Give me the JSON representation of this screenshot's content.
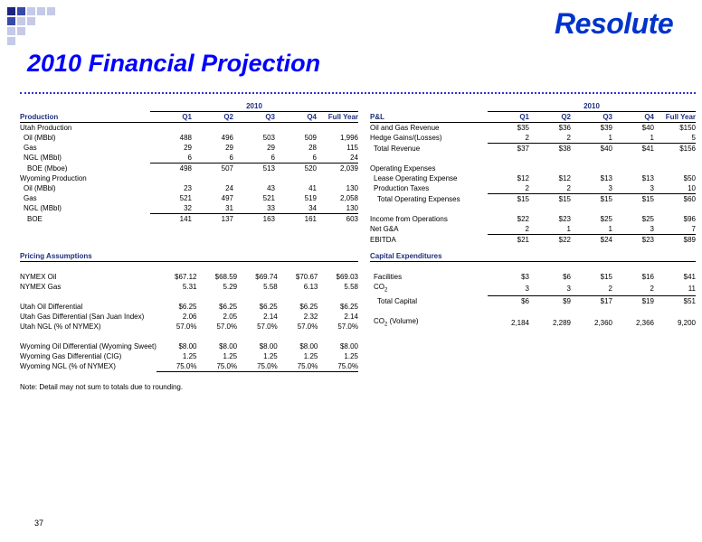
{
  "brand": {
    "logo_text": "Resolute",
    "accent": "#0033cc",
    "title_color": "#0000ff",
    "header_color": "#1f2f7f"
  },
  "page": {
    "title": "2010 Financial Projection",
    "page_number": "37",
    "note": "Note:  Detail may not sum to totals due to rounding."
  },
  "production": {
    "year": "2010",
    "header": [
      "Production",
      "Q1",
      "Q2",
      "Q3",
      "Q4",
      "Full Year"
    ],
    "rows": [
      {
        "label": "Utah Production",
        "indent": 0,
        "values": [
          "",
          "",
          "",
          "",
          ""
        ]
      },
      {
        "label": "Oil (MBbl)",
        "indent": 1,
        "values": [
          "488",
          "496",
          "503",
          "509",
          "1,996"
        ]
      },
      {
        "label": "Gas",
        "indent": 1,
        "values": [
          "29",
          "29",
          "29",
          "28",
          "115"
        ]
      },
      {
        "label": "NGL (MBbl)",
        "indent": 1,
        "values": [
          "6",
          "6",
          "6",
          "6",
          "24"
        ],
        "underline": true
      },
      {
        "label": "BOE (Mboe)",
        "indent": 2,
        "values": [
          "498",
          "507",
          "513",
          "520",
          "2,039"
        ]
      },
      {
        "label": "Wyoming Production",
        "indent": 0,
        "values": [
          "",
          "",
          "",
          "",
          ""
        ]
      },
      {
        "label": "Oil (MBbl)",
        "indent": 1,
        "values": [
          "23",
          "24",
          "43",
          "41",
          "130"
        ]
      },
      {
        "label": "Gas",
        "indent": 1,
        "values": [
          "521",
          "497",
          "521",
          "519",
          "2,058"
        ]
      },
      {
        "label": "NGL (MBbl)",
        "indent": 1,
        "values": [
          "32",
          "31",
          "33",
          "34",
          "130"
        ],
        "underline": true
      },
      {
        "label": "BOE",
        "indent": 2,
        "values": [
          "141",
          "137",
          "163",
          "161",
          "603"
        ]
      }
    ]
  },
  "pnl": {
    "year": "2010",
    "header": [
      "P&L",
      "Q1",
      "Q2",
      "Q3",
      "Q4",
      "Full Year"
    ],
    "rows": [
      {
        "label": "Oil and Gas Revenue",
        "indent": 0,
        "values": [
          "$35",
          "$36",
          "$39",
          "$40",
          "$150"
        ]
      },
      {
        "label": "Hedge Gains/(Losses)",
        "indent": 0,
        "values": [
          "2",
          "2",
          "1",
          "1",
          "5"
        ],
        "underline": true
      },
      {
        "label": "Total Revenue",
        "indent": 1,
        "values": [
          "$37",
          "$38",
          "$40",
          "$41",
          "$156"
        ]
      },
      {
        "label": "",
        "indent": 0,
        "values": [
          "",
          "",
          "",
          "",
          ""
        ]
      },
      {
        "label": "Operating Expenses",
        "indent": 0,
        "values": [
          "",
          "",
          "",
          "",
          ""
        ]
      },
      {
        "label": "Lease Operating Expense",
        "indent": 1,
        "values": [
          "$12",
          "$12",
          "$13",
          "$13",
          "$50"
        ]
      },
      {
        "label": "Production Taxes",
        "indent": 1,
        "values": [
          "2",
          "2",
          "3",
          "3",
          "10"
        ],
        "underline": true
      },
      {
        "label": "Total Operating Expenses",
        "indent": 2,
        "values": [
          "$15",
          "$15",
          "$15",
          "$15",
          "$60"
        ]
      },
      {
        "label": "",
        "indent": 0,
        "values": [
          "",
          "",
          "",
          "",
          ""
        ]
      },
      {
        "label": "Income from Operations",
        "indent": 0,
        "values": [
          "$22",
          "$23",
          "$25",
          "$25",
          "$96"
        ]
      },
      {
        "label": "Net G&A",
        "indent": 0,
        "values": [
          "2",
          "1",
          "1",
          "3",
          "7"
        ],
        "underline": true
      },
      {
        "label": "EBITDA",
        "indent": 0,
        "values": [
          "$21",
          "$22",
          "$24",
          "$23",
          "$89"
        ]
      }
    ]
  },
  "pricing": {
    "heading": "Pricing Assumptions",
    "rows": [
      {
        "label": "",
        "values": [
          "",
          "",
          "",
          "",
          ""
        ]
      },
      {
        "label": "NYMEX Oil",
        "values": [
          "$67.12",
          "$68.59",
          "$69.74",
          "$70.67",
          "$69.03"
        ]
      },
      {
        "label": "NYMEX Gas",
        "values": [
          "5.31",
          "5.29",
          "5.58",
          "6.13",
          "5.58"
        ]
      },
      {
        "label": "",
        "values": [
          "",
          "",
          "",
          "",
          ""
        ]
      },
      {
        "label": "Utah Oil Differential",
        "values": [
          "$6.25",
          "$6.25",
          "$6.25",
          "$6.25",
          "$6.25"
        ]
      },
      {
        "label": "Utah Gas Differential (San Juan Index)",
        "values": [
          "2.06",
          "2.05",
          "2.14",
          "2.32",
          "2.14"
        ]
      },
      {
        "label": "Utah NGL (% of NYMEX)",
        "values": [
          "57.0%",
          "57.0%",
          "57.0%",
          "57.0%",
          "57.0%"
        ]
      },
      {
        "label": "",
        "values": [
          "",
          "",
          "",
          "",
          ""
        ]
      },
      {
        "label": "Wyoming Oil Differential (Wyoming Sweet)",
        "values": [
          "$8.00",
          "$8.00",
          "$8.00",
          "$8.00",
          "$8.00"
        ]
      },
      {
        "label": "Wyoming Gas Differential (CIG)",
        "values": [
          "1.25",
          "1.25",
          "1.25",
          "1.25",
          "1.25"
        ]
      },
      {
        "label": "Wyoming NGL (% of NYMEX)",
        "values": [
          "75.0%",
          "75.0%",
          "75.0%",
          "75.0%",
          "75.0%"
        ],
        "underline": true
      }
    ]
  },
  "capex": {
    "heading": "Capital Expenditures",
    "rows": [
      {
        "label": "",
        "indent": 0,
        "values": [
          "",
          "",
          "",
          "",
          ""
        ]
      },
      {
        "label": "Facilities",
        "indent": 1,
        "values": [
          "$3",
          "$6",
          "$15",
          "$16",
          "$41"
        ]
      },
      {
        "label": "CO",
        "sub": "2",
        "indent": 1,
        "values": [
          "3",
          "3",
          "2",
          "2",
          "11"
        ],
        "underline": true
      },
      {
        "label": "Total Capital",
        "indent": 2,
        "values": [
          "$6",
          "$9",
          "$17",
          "$19",
          "$51"
        ]
      },
      {
        "label": "",
        "indent": 0,
        "values": [
          "",
          "",
          "",
          "",
          ""
        ]
      },
      {
        "label": "CO",
        "sub": "2",
        "suffix": " (Volume)",
        "indent": 1,
        "values": [
          "2,184",
          "2,289",
          "2,360",
          "2,366",
          "9,200"
        ]
      }
    ]
  }
}
